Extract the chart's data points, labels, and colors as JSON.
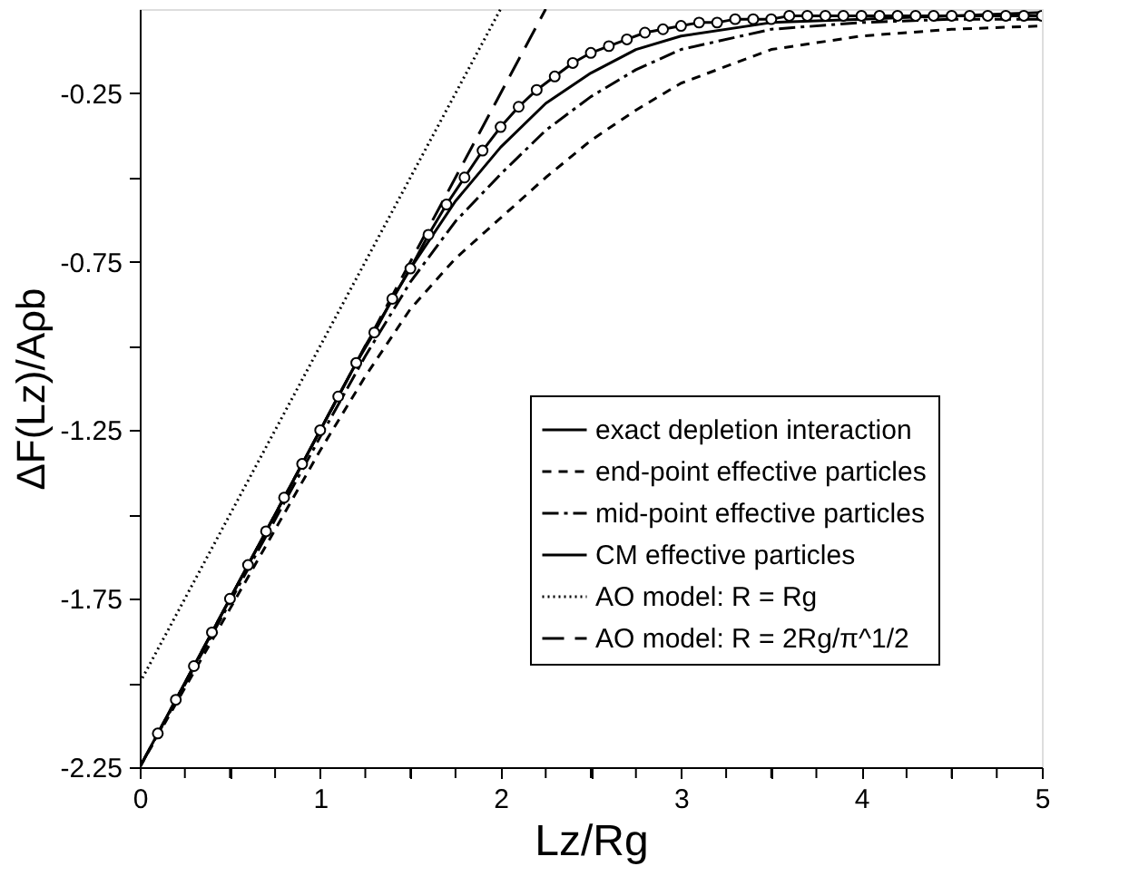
{
  "chart_data": {
    "type": "line",
    "xlabel": "Lz/Rg",
    "ylabel": "ΔF(Lz)/Aρb",
    "xlim": [
      0,
      5
    ],
    "ylim": [
      -2.25,
      0
    ],
    "xticks": [
      0,
      {
        "value": 0.25,
        "label": null
      },
      {
        "value": 0.5,
        "label": null
      },
      {
        "value": 0.75,
        "label": null
      },
      1,
      {
        "value": 1.25,
        "label": null
      },
      {
        "value": 1.5,
        "label": null
      },
      {
        "value": 1.75,
        "label": null
      },
      2,
      {
        "value": 2.25,
        "label": null
      },
      {
        "value": 2.5,
        "label": null
      },
      {
        "value": 2.75,
        "label": null
      },
      3,
      {
        "value": 3.25,
        "label": null
      },
      {
        "value": 3.5,
        "label": null
      },
      {
        "value": 3.75,
        "label": null
      },
      4,
      {
        "value": 4.25,
        "label": null
      },
      {
        "value": 4.5,
        "label": null
      },
      {
        "value": 4.75,
        "label": null
      },
      5
    ],
    "yticks": [
      -2.25,
      {
        "value": -2.0,
        "label": null
      },
      -1.75,
      {
        "value": -1.5,
        "label": null
      },
      -1.25,
      {
        "value": -1.0,
        "label": null
      },
      -0.75,
      {
        "value": -0.5,
        "label": null
      },
      -0.25
    ],
    "grid": false,
    "legend": "bottom right",
    "series": [
      {
        "name": "exact depletion interaction",
        "color": "#000000",
        "line_style": "solid",
        "marker": "none",
        "x": [
          0,
          0.5,
          1,
          1.25,
          1.5,
          1.75,
          2,
          2.25,
          2.5,
          2.75,
          3,
          3.5,
          4,
          4.5,
          5
        ],
        "values": [
          -2.25,
          -1.75,
          -1.25,
          -1.0,
          -0.77,
          -0.57,
          -0.41,
          -0.28,
          -0.19,
          -0.12,
          -0.08,
          -0.04,
          -0.03,
          -0.02,
          -0.01
        ]
      },
      {
        "name": "end-point effective particles",
        "color": "#000000",
        "line_style": "dashed",
        "marker": "none",
        "x": [
          0,
          0.5,
          1,
          1.25,
          1.5,
          1.75,
          2,
          2.25,
          2.5,
          2.75,
          3,
          3.5,
          4,
          4.5,
          5
        ],
        "values": [
          -2.25,
          -1.78,
          -1.31,
          -1.09,
          -0.89,
          -0.74,
          -0.62,
          -0.5,
          -0.39,
          -0.3,
          -0.22,
          -0.12,
          -0.08,
          -0.06,
          -0.05
        ]
      },
      {
        "name": "mid-point effective particles",
        "color": "#000000",
        "line_style": "dashdot",
        "marker": "none",
        "x": [
          0,
          0.5,
          1,
          1.25,
          1.5,
          1.75,
          2,
          2.25,
          2.5,
          2.75,
          3,
          3.5,
          4,
          4.5,
          5
        ],
        "values": [
          -2.25,
          -1.76,
          -1.27,
          -1.03,
          -0.81,
          -0.63,
          -0.49,
          -0.36,
          -0.26,
          -0.18,
          -0.12,
          -0.06,
          -0.04,
          -0.03,
          -0.03
        ]
      },
      {
        "name": "CM effective particles",
        "color": "#000000",
        "line_style": "solid",
        "marker": "circle",
        "x": [
          0.1,
          0.2,
          0.3,
          0.4,
          0.5,
          0.6,
          0.7,
          0.8,
          0.9,
          1.0,
          1.1,
          1.2,
          1.3,
          1.4,
          1.5,
          1.6,
          1.7,
          1.8,
          1.9,
          2.0,
          2.1,
          2.2,
          2.3,
          2.4,
          2.5,
          2.6,
          2.7,
          2.8,
          2.9,
          3.0,
          3.1,
          3.2,
          3.3,
          3.4,
          3.5,
          3.6,
          3.7,
          3.8,
          3.9,
          4.0,
          4.1,
          4.2,
          4.3,
          4.4,
          4.5,
          4.6,
          4.7,
          4.8,
          4.9,
          5.0
        ],
        "values": [
          -2.15,
          -2.05,
          -1.95,
          -1.85,
          -1.75,
          -1.65,
          -1.55,
          -1.45,
          -1.35,
          -1.25,
          -1.15,
          -1.05,
          -0.96,
          -0.86,
          -0.77,
          -0.67,
          -0.58,
          -0.5,
          -0.42,
          -0.35,
          -0.29,
          -0.24,
          -0.2,
          -0.16,
          -0.13,
          -0.11,
          -0.09,
          -0.07,
          -0.06,
          -0.05,
          -0.04,
          -0.04,
          -0.03,
          -0.03,
          -0.03,
          -0.02,
          -0.02,
          -0.02,
          -0.02,
          -0.02,
          -0.02,
          -0.02,
          -0.02,
          -0.02,
          -0.02,
          -0.02,
          -0.02,
          -0.02,
          -0.02,
          -0.02
        ]
      },
      {
        "name": "AO model: R = Rg",
        "color": "#000000",
        "line_style": "dotted",
        "marker": "none",
        "x": [
          0,
          2
        ],
        "values": [
          -2.0,
          0
        ]
      },
      {
        "name": "AO model: R = 2Rg/π^1/2",
        "color": "#000000",
        "line_style": "longdash",
        "marker": "none",
        "x": [
          0,
          2.25
        ],
        "values": [
          -2.25,
          0
        ]
      }
    ]
  }
}
